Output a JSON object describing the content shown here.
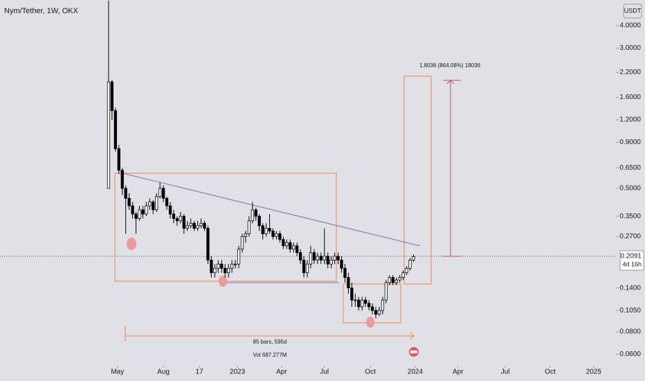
{
  "chart_data": {
    "type": "candlestick",
    "title": "Nym/Tether, 1W, OKX",
    "currency": "USDT",
    "log_scale": true,
    "grid": false,
    "up_color": "#ffffff",
    "down_color": "#000000",
    "annotations": {
      "measure": "1.8036 (864.08%) 18036",
      "range": "85 bars, 595d",
      "volume": "Vol 687.277M"
    },
    "last_price": {
      "value": 0.2091,
      "label": "0.2091",
      "countdown": "4d 16h"
    },
    "xlim": [
      -31.7,
      148.1
    ],
    "ylim": [
      0.0518,
      5.55
    ],
    "xticks": [
      {
        "value": 2.6,
        "label": "May"
      },
      {
        "value": 16,
        "label": "Aug"
      },
      {
        "value": 26.5,
        "label": "17"
      },
      {
        "value": 37.6,
        "label": "2023"
      },
      {
        "value": 50.5,
        "label": "Apr"
      },
      {
        "value": 63,
        "label": "Jul"
      },
      {
        "value": 76.4,
        "label": "Oct"
      },
      {
        "value": 89.5,
        "label": "2024"
      },
      {
        "value": 102,
        "label": "Apr"
      },
      {
        "value": 115.8,
        "label": "Jul"
      },
      {
        "value": 128.9,
        "label": "Oct"
      },
      {
        "value": 141.6,
        "label": "2025"
      }
    ],
    "yticks": [
      {
        "value": 4,
        "label": "4.0000"
      },
      {
        "value": 3,
        "label": "3.0000"
      },
      {
        "value": 2.2,
        "label": "2.2000"
      },
      {
        "value": 1.6,
        "label": "1.6000"
      },
      {
        "value": 1.2,
        "label": "1.2000"
      },
      {
        "value": 0.9,
        "label": "0.9000"
      },
      {
        "value": 0.65,
        "label": "0.6500"
      },
      {
        "value": 0.5,
        "label": "0.5000"
      },
      {
        "value": 0.35,
        "label": "0.3500"
      },
      {
        "value": 0.27,
        "label": "0.2700"
      },
      {
        "value": 0.14,
        "label": "0.1400"
      },
      {
        "value": 0.105,
        "label": "0.1050"
      },
      {
        "value": 0.08,
        "label": "0.0800"
      },
      {
        "value": 0.06,
        "label": "0.0600"
      }
    ],
    "x": [
      0,
      1,
      2,
      3,
      4,
      5,
      6,
      7,
      8,
      9,
      10,
      11,
      12,
      13,
      14,
      15,
      16,
      17,
      18,
      19,
      20,
      21,
      22,
      23,
      24,
      25,
      26,
      27,
      28,
      29,
      30,
      31,
      32,
      33,
      34,
      35,
      36,
      37,
      38,
      39,
      40,
      41,
      42,
      43,
      44,
      45,
      46,
      47,
      48,
      49,
      50,
      51,
      52,
      53,
      54,
      55,
      56,
      57,
      58,
      59,
      60,
      61,
      62,
      63,
      64,
      65,
      66,
      67,
      68,
      69,
      70,
      71,
      72,
      73,
      74,
      75,
      76,
      77,
      78,
      79,
      80,
      81,
      82,
      83,
      84,
      85,
      86,
      87,
      88,
      89
    ],
    "open": [
      0.5,
      1.95,
      1.35,
      0.83,
      0.63,
      0.5,
      0.44,
      0.4,
      0.36,
      0.34,
      0.38,
      0.36,
      0.4,
      0.42,
      0.38,
      0.45,
      0.5,
      0.44,
      0.4,
      0.36,
      0.34,
      0.33,
      0.35,
      0.3,
      0.31,
      0.32,
      0.3,
      0.31,
      0.32,
      0.3,
      0.2,
      0.17,
      0.18,
      0.19,
      0.18,
      0.17,
      0.18,
      0.19,
      0.19,
      0.23,
      0.27,
      0.28,
      0.33,
      0.38,
      0.35,
      0.31,
      0.28,
      0.3,
      0.29,
      0.27,
      0.28,
      0.26,
      0.24,
      0.25,
      0.23,
      0.24,
      0.22,
      0.2,
      0.17,
      0.19,
      0.22,
      0.2,
      0.21,
      0.2,
      0.21,
      0.19,
      0.2,
      0.21,
      0.2,
      0.18,
      0.16,
      0.14,
      0.12,
      0.12,
      0.11,
      0.12,
      0.115,
      0.11,
      0.105,
      0.1,
      0.105,
      0.12,
      0.15,
      0.16,
      0.15,
      0.155,
      0.16,
      0.17,
      0.18,
      0.2
    ],
    "high": [
      5.5,
      2.0,
      1.4,
      0.87,
      0.65,
      0.52,
      0.47,
      0.42,
      0.37,
      0.4,
      0.4,
      0.42,
      0.44,
      0.43,
      0.47,
      0.54,
      0.52,
      0.45,
      0.42,
      0.38,
      0.35,
      0.37,
      0.36,
      0.33,
      0.34,
      0.33,
      0.33,
      0.34,
      0.33,
      0.31,
      0.21,
      0.19,
      0.2,
      0.2,
      0.19,
      0.19,
      0.2,
      0.2,
      0.24,
      0.28,
      0.29,
      0.35,
      0.42,
      0.39,
      0.36,
      0.32,
      0.32,
      0.36,
      0.3,
      0.29,
      0.29,
      0.27,
      0.26,
      0.26,
      0.25,
      0.25,
      0.23,
      0.21,
      0.2,
      0.24,
      0.23,
      0.22,
      0.22,
      0.3,
      0.22,
      0.21,
      0.22,
      0.22,
      0.21,
      0.19,
      0.17,
      0.15,
      0.13,
      0.125,
      0.125,
      0.125,
      0.12,
      0.115,
      0.11,
      0.11,
      0.125,
      0.155,
      0.165,
      0.165,
      0.16,
      0.165,
      0.175,
      0.185,
      0.205,
      0.215
    ],
    "low": [
      0.5,
      1.2,
      0.8,
      0.6,
      0.46,
      0.28,
      0.38,
      0.34,
      0.28,
      0.33,
      0.34,
      0.35,
      0.38,
      0.36,
      0.37,
      0.44,
      0.42,
      0.38,
      0.34,
      0.32,
      0.31,
      0.32,
      0.28,
      0.29,
      0.3,
      0.29,
      0.29,
      0.3,
      0.29,
      0.19,
      0.16,
      0.16,
      0.17,
      0.17,
      0.16,
      0.16,
      0.17,
      0.18,
      0.18,
      0.22,
      0.25,
      0.27,
      0.32,
      0.33,
      0.29,
      0.26,
      0.27,
      0.28,
      0.26,
      0.26,
      0.25,
      0.23,
      0.23,
      0.22,
      0.22,
      0.21,
      0.19,
      0.16,
      0.16,
      0.18,
      0.19,
      0.19,
      0.19,
      0.19,
      0.18,
      0.18,
      0.19,
      0.19,
      0.17,
      0.15,
      0.13,
      0.11,
      0.11,
      0.105,
      0.105,
      0.11,
      0.105,
      0.1,
      0.095,
      0.098,
      0.1,
      0.115,
      0.145,
      0.145,
      0.145,
      0.15,
      0.155,
      0.165,
      0.175,
      0.195
    ],
    "close": [
      1.95,
      1.35,
      0.83,
      0.63,
      0.5,
      0.44,
      0.4,
      0.36,
      0.34,
      0.38,
      0.36,
      0.4,
      0.42,
      0.38,
      0.45,
      0.5,
      0.44,
      0.4,
      0.36,
      0.34,
      0.33,
      0.35,
      0.3,
      0.31,
      0.32,
      0.3,
      0.31,
      0.32,
      0.3,
      0.2,
      0.17,
      0.18,
      0.19,
      0.18,
      0.17,
      0.18,
      0.19,
      0.19,
      0.23,
      0.27,
      0.28,
      0.33,
      0.38,
      0.35,
      0.31,
      0.28,
      0.3,
      0.29,
      0.27,
      0.28,
      0.26,
      0.24,
      0.25,
      0.23,
      0.24,
      0.22,
      0.2,
      0.17,
      0.19,
      0.22,
      0.2,
      0.21,
      0.2,
      0.21,
      0.19,
      0.2,
      0.21,
      0.2,
      0.18,
      0.16,
      0.14,
      0.12,
      0.12,
      0.11,
      0.12,
      0.115,
      0.11,
      0.105,
      0.1,
      0.105,
      0.12,
      0.15,
      0.16,
      0.15,
      0.155,
      0.16,
      0.17,
      0.18,
      0.2,
      0.2091
    ]
  }
}
